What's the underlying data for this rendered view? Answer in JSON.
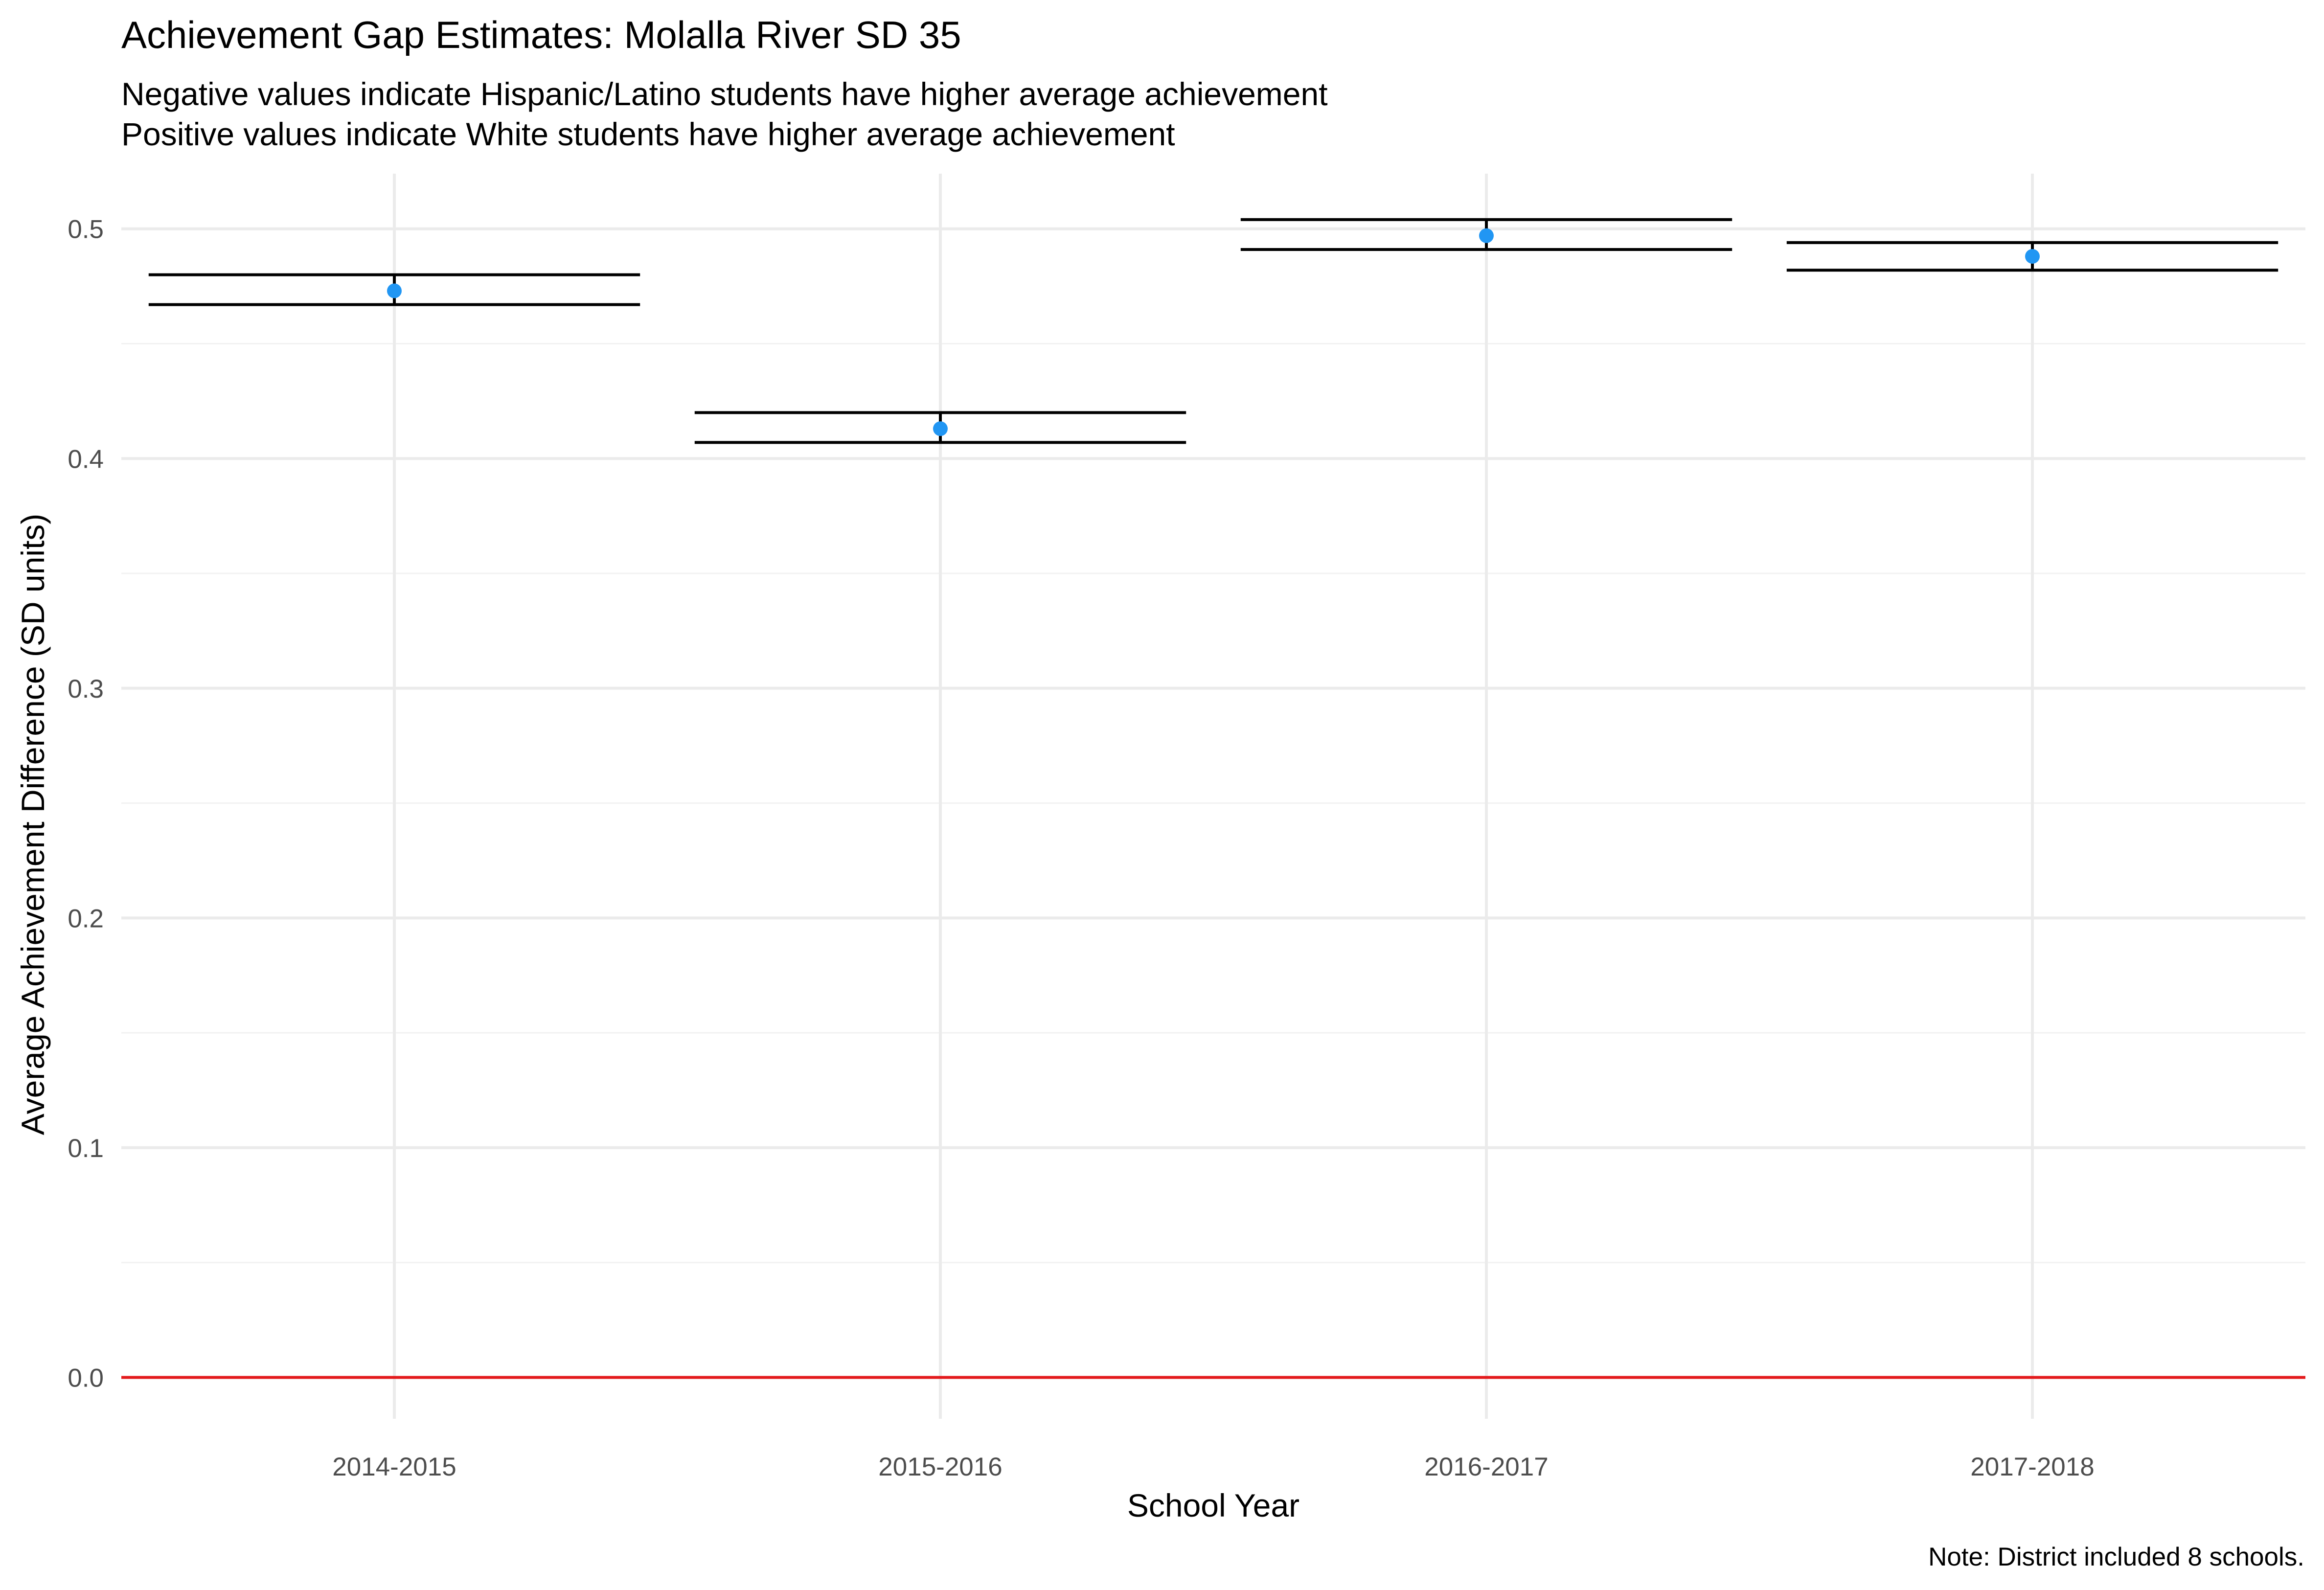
{
  "chart_data": {
    "type": "errorbar",
    "title": "Achievement Gap Estimates: Molalla River SD 35",
    "subtitle": [
      "Negative values indicate Hispanic/Latino students have higher average achievement",
      "Positive values indicate White students have higher average achievement"
    ],
    "xlabel": "School Year",
    "ylabel": "Average Achievement Difference (SD units)",
    "caption": "Note: District included 8 schools.",
    "categories": [
      "2014-2015",
      "2015-2016",
      "2016-2017",
      "2017-2018"
    ],
    "estimates": [
      0.473,
      0.413,
      0.497,
      0.488
    ],
    "lower": [
      0.467,
      0.407,
      0.491,
      0.482
    ],
    "upper": [
      0.48,
      0.42,
      0.504,
      0.494
    ],
    "ylim": [
      -0.018,
      0.524
    ],
    "yticks": [
      0.0,
      0.1,
      0.2,
      0.3,
      0.4,
      0.5
    ],
    "ytick_labels": [
      "0.0",
      "0.1",
      "0.2",
      "0.3",
      "0.4",
      "0.5"
    ],
    "reference_line": 0.0,
    "grid": true,
    "colors": {
      "point": "#2196f3",
      "reference": "#e31a1c",
      "errorbar": "#000000",
      "grid": "#ebebeb"
    }
  }
}
